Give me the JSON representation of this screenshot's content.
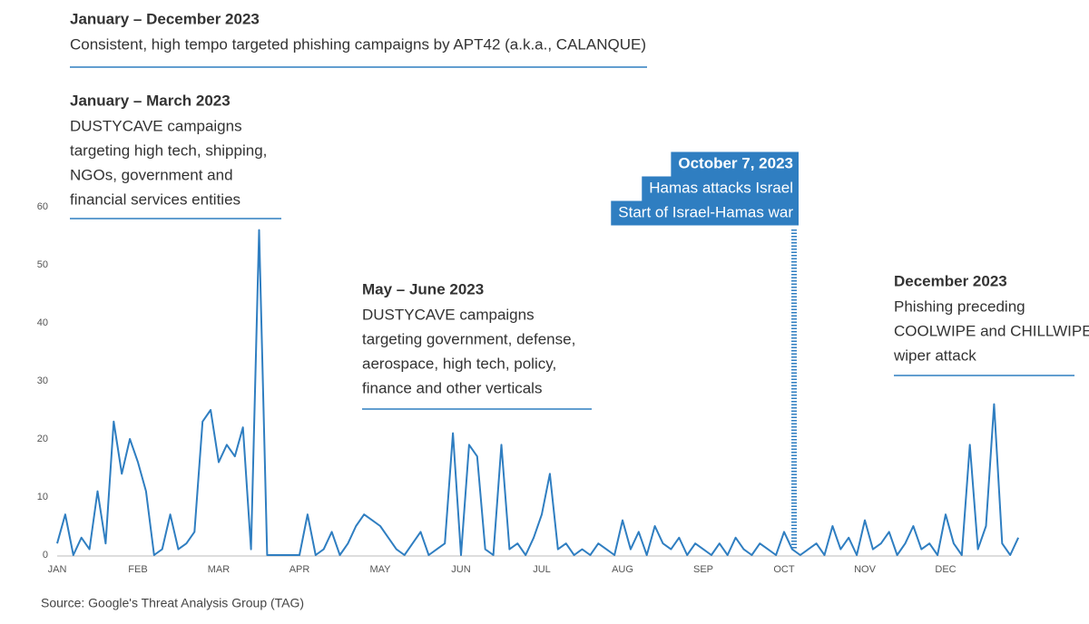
{
  "chart_data": {
    "type": "line",
    "source": "Source: Google's Threat Analysis Group (TAG)",
    "categories": [
      "JAN",
      null,
      null,
      null,
      null,
      null,
      null,
      null,
      null,
      null,
      "FEB",
      null,
      null,
      null,
      null,
      null,
      null,
      null,
      null,
      null,
      "MAR",
      null,
      null,
      null,
      null,
      null,
      null,
      null,
      null,
      null,
      "APR",
      null,
      null,
      null,
      null,
      null,
      null,
      null,
      null,
      null,
      "MAY",
      null,
      null,
      null,
      null,
      null,
      null,
      null,
      null,
      null,
      "JUN",
      null,
      null,
      null,
      null,
      null,
      null,
      null,
      null,
      null,
      "JUL",
      null,
      null,
      null,
      null,
      null,
      null,
      null,
      null,
      null,
      "AUG",
      null,
      null,
      null,
      null,
      null,
      null,
      null,
      null,
      null,
      "SEP",
      null,
      null,
      null,
      null,
      null,
      null,
      null,
      null,
      null,
      "OCT",
      null,
      null,
      null,
      null,
      null,
      null,
      null,
      null,
      null,
      "NOV",
      null,
      null,
      null,
      null,
      null,
      null,
      null,
      null,
      null,
      "DEC",
      null,
      null,
      null,
      null,
      null,
      null,
      null,
      null,
      null
    ],
    "values": [
      2,
      7,
      0,
      3,
      1,
      11,
      2,
      23,
      14,
      20,
      16,
      11,
      0,
      1,
      7,
      1,
      2,
      4,
      23,
      25,
      16,
      19,
      17,
      22,
      1,
      56,
      0,
      0,
      0,
      0,
      0,
      7,
      0,
      1,
      4,
      0,
      2,
      5,
      7,
      6,
      5,
      3,
      1,
      0,
      2,
      4,
      0,
      1,
      2,
      21,
      0,
      19,
      17,
      1,
      0,
      19,
      1,
      2,
      0,
      3,
      7,
      14,
      1,
      2,
      0,
      1,
      0,
      2,
      1,
      0,
      6,
      1,
      4,
      0,
      5,
      2,
      1,
      3,
      0,
      2,
      1,
      0,
      2,
      0,
      3,
      1,
      0,
      2,
      1,
      0,
      4,
      1,
      0,
      1,
      2,
      0,
      5,
      1,
      3,
      0,
      6,
      1,
      2,
      4,
      0,
      2,
      5,
      1,
      2,
      0,
      7,
      2,
      0,
      19,
      1,
      5,
      26,
      2,
      0,
      3
    ],
    "color": "#2f7ec1",
    "ylim": [
      0,
      60
    ],
    "yticks": [
      0,
      10,
      20,
      30,
      40,
      50,
      60
    ],
    "annotations": [
      {
        "title": "January – December 2023",
        "text": [
          "Consistent, high tempo targeted phishing campaigns by APT42 (a.k.a., CALANQUE)"
        ]
      },
      {
        "title": "January – March 2023",
        "text": [
          "DUSTYCAVE campaigns",
          "targeting high tech, shipping,",
          "NGOs, government and",
          "financial services entities"
        ]
      },
      {
        "title": "May – June 2023",
        "text": [
          "DUSTYCAVE campaigns",
          "targeting government, defense,",
          "aerospace, high tech, policy,",
          "finance and other verticals"
        ]
      },
      {
        "title": "October 7, 2023",
        "text": [
          "Hamas attacks Israel",
          "Start of Israel-Hamas war"
        ]
      },
      {
        "title": "December 2023",
        "text": [
          "Phishing preceding",
          "COOLWIPE and CHILLWIPE",
          "wiper attack"
        ]
      }
    ]
  }
}
